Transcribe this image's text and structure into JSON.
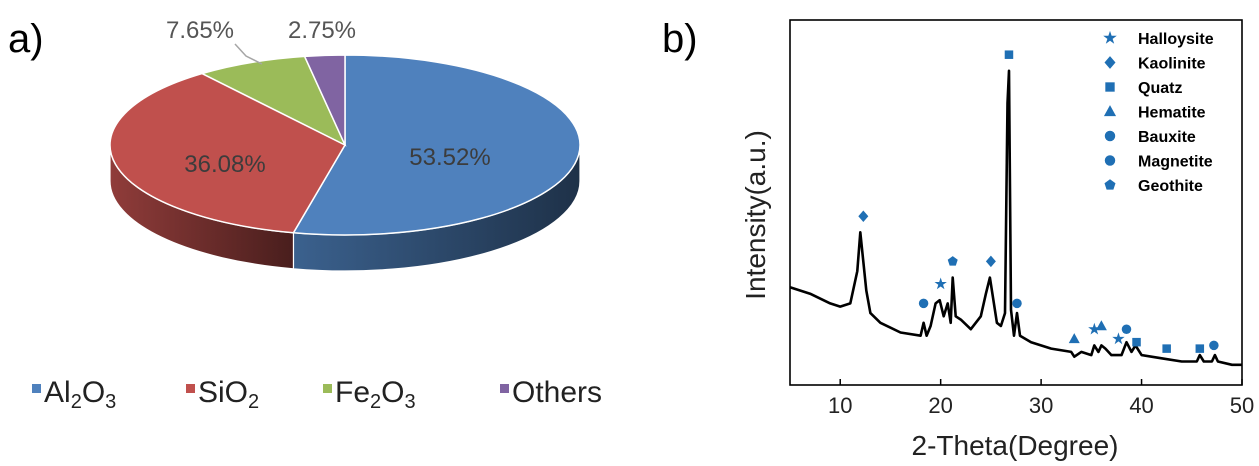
{
  "panel_a": {
    "label": "a)",
    "chart_data": {
      "type": "pie",
      "categories": [
        "Al2O3",
        "SiO2",
        "Fe2O3",
        "Others"
      ],
      "values": [
        53.52,
        36.08,
        7.65,
        2.75
      ],
      "value_labels": [
        "53.52%",
        "36.08%",
        "7.65%",
        "2.75%"
      ],
      "legend_position": "bottom",
      "colors": [
        "#4f81bd",
        "#c0504d",
        "#9bbb59",
        "#8064a2"
      ]
    },
    "legend": [
      {
        "base": "Al",
        "sub1": "2",
        "mid": "O",
        "sub2": "3"
      },
      {
        "base": "SiO",
        "sub1": "2",
        "mid": "",
        "sub2": ""
      },
      {
        "base": "Fe",
        "sub1": "2",
        "mid": "O",
        "sub2": "3"
      },
      {
        "base": "Others",
        "sub1": "",
        "mid": "",
        "sub2": ""
      }
    ]
  },
  "panel_b": {
    "label": "b)",
    "chart_data": {
      "type": "line",
      "xlabel": "2-Theta(Degree)",
      "ylabel": "Intensity(a.u.)",
      "xlim": [
        5,
        50
      ],
      "ylim": [
        0,
        100
      ],
      "xticks": [
        10,
        20,
        30,
        40,
        50
      ],
      "legend_position": "top-right",
      "series": [
        {
          "x": [
            5,
            7,
            9,
            10,
            11,
            11.7,
            12,
            12.3,
            12.6,
            13,
            14,
            16,
            18,
            18.3,
            18.6,
            19,
            19.5,
            19.9,
            20.3,
            20.7,
            21,
            21.2,
            21.5,
            22,
            23,
            24,
            24.5,
            24.9,
            25.2,
            25.6,
            26,
            26.4,
            26.65,
            26.8,
            27,
            27.3,
            27.6,
            27.9,
            29,
            31,
            33,
            33.3,
            34,
            35,
            35.3,
            35.7,
            36,
            36.4,
            37,
            38,
            38.5,
            39,
            39.4,
            40,
            42,
            44,
            45.5,
            45.8,
            46.2,
            47,
            47.3,
            47.6,
            49,
            50
          ],
          "y": [
            25,
            23,
            20,
            19,
            20,
            30,
            42,
            33,
            24,
            17,
            14,
            11,
            10,
            14,
            10,
            13,
            20,
            21,
            16,
            20,
            14,
            28,
            16,
            15,
            12,
            16,
            23,
            28,
            22,
            14,
            13,
            17,
            82,
            92,
            18,
            10,
            17,
            10,
            8,
            6,
            5,
            3.5,
            5,
            4,
            7,
            5,
            7,
            6,
            4,
            4,
            8,
            5,
            7,
            4,
            3,
            2,
            2,
            4,
            2,
            2,
            4,
            2,
            1,
            1
          ]
        }
      ],
      "legend": [
        {
          "name": "Halloysite",
          "marker": "star"
        },
        {
          "name": "Kaolinite",
          "marker": "diamond"
        },
        {
          "name": "Quatz",
          "marker": "square"
        },
        {
          "name": "Hematite",
          "marker": "triangle"
        },
        {
          "name": "Bauxite",
          "marker": "circle"
        },
        {
          "name": "Magnetite",
          "marker": "circle"
        },
        {
          "name": "Geothite",
          "marker": "pentagon"
        }
      ],
      "peak_markers": [
        {
          "x": 12.3,
          "y": 47,
          "marker": "diamond"
        },
        {
          "x": 18.3,
          "y": 20,
          "marker": "circle"
        },
        {
          "x": 20.0,
          "y": 26,
          "marker": "star"
        },
        {
          "x": 21.2,
          "y": 33,
          "marker": "pentagon"
        },
        {
          "x": 25.0,
          "y": 33,
          "marker": "diamond"
        },
        {
          "x": 26.8,
          "y": 97,
          "marker": "square"
        },
        {
          "x": 27.6,
          "y": 20,
          "marker": "circle"
        },
        {
          "x": 33.3,
          "y": 9,
          "marker": "triangle"
        },
        {
          "x": 35.3,
          "y": 12,
          "marker": "star"
        },
        {
          "x": 36.0,
          "y": 13,
          "marker": "triangle"
        },
        {
          "x": 37.7,
          "y": 9,
          "marker": "star"
        },
        {
          "x": 38.5,
          "y": 12,
          "marker": "circle"
        },
        {
          "x": 39.5,
          "y": 8,
          "marker": "square"
        },
        {
          "x": 42.5,
          "y": 6,
          "marker": "square"
        },
        {
          "x": 45.8,
          "y": 6,
          "marker": "square"
        },
        {
          "x": 47.2,
          "y": 7,
          "marker": "circle"
        }
      ],
      "marker_color": "#1f6fb4"
    }
  }
}
